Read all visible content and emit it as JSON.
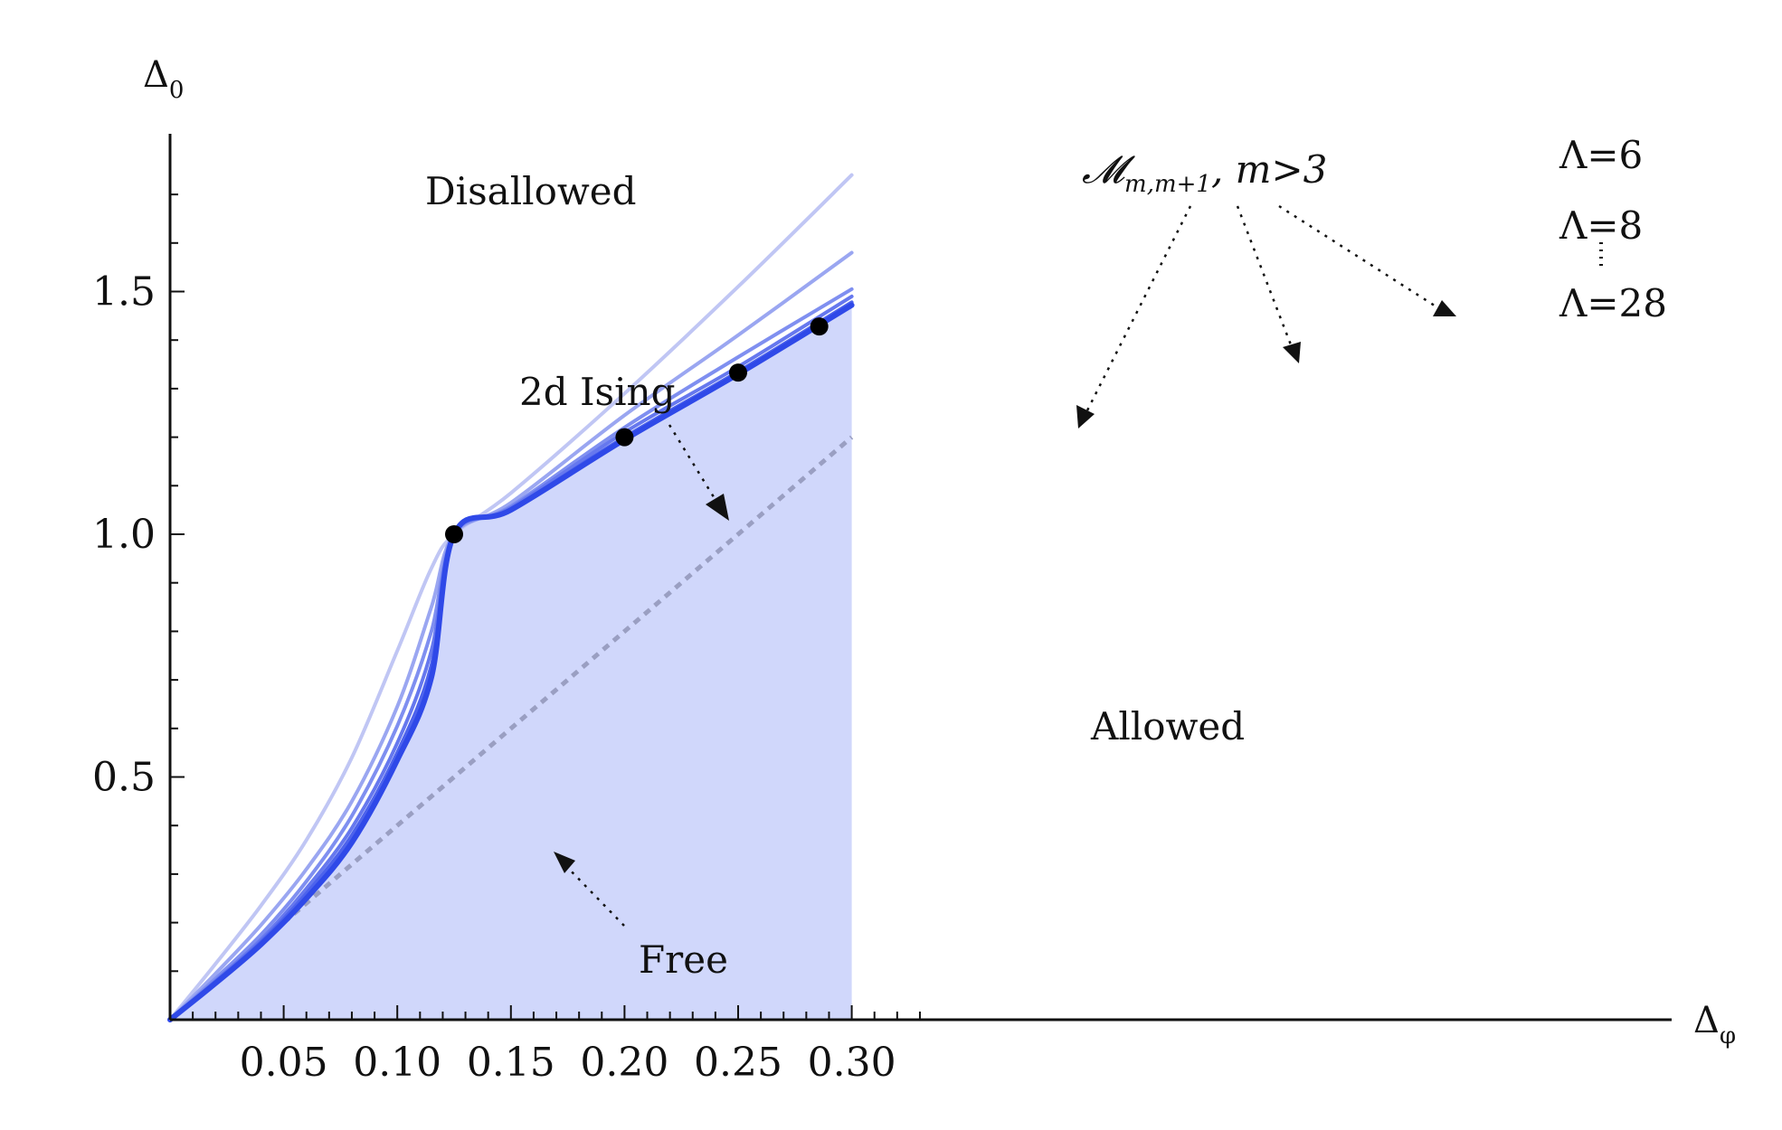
{
  "chart_data": {
    "type": "line",
    "xlabel": "Δ",
    "xlabel_sub": "φ",
    "ylabel": "Δ",
    "ylabel_sub": "0",
    "xlim": [
      0,
      0.33
    ],
    "ylim": [
      0,
      1.8
    ],
    "x_ticks": [
      0.05,
      0.1,
      0.15,
      0.2,
      0.25,
      0.3
    ],
    "x_tick_labels": [
      "0.05",
      "0.10",
      "0.15",
      "0.20",
      "0.25",
      "0.30"
    ],
    "y_ticks": [
      0.5,
      1.0,
      1.5
    ],
    "y_tick_labels": [
      "0.5",
      "1.0",
      "1.5"
    ],
    "grid": false,
    "allowed_fill_color": "#d0d7fb",
    "series": [
      {
        "name": "Λ=6",
        "color": "#c0c6f4",
        "x": [
          0,
          0.02,
          0.04,
          0.06,
          0.08,
          0.1,
          0.115,
          0.125,
          0.15,
          0.2,
          0.25,
          0.3
        ],
        "y": [
          0,
          0.115,
          0.235,
          0.37,
          0.54,
          0.76,
          0.93,
          1.0,
          1.085,
          1.29,
          1.51,
          1.74
        ]
      },
      {
        "name": "Λ=8",
        "color": "#9aa6f1",
        "x": [
          0,
          0.02,
          0.04,
          0.06,
          0.08,
          0.1,
          0.115,
          0.125,
          0.15,
          0.2,
          0.25,
          0.3
        ],
        "y": [
          0,
          0.095,
          0.195,
          0.31,
          0.45,
          0.645,
          0.85,
          1.0,
          1.065,
          1.245,
          1.41,
          1.58
        ]
      },
      {
        "name": "",
        "color": "#7f8ff0",
        "x": [
          0,
          0.02,
          0.04,
          0.06,
          0.08,
          0.1,
          0.115,
          0.125,
          0.15,
          0.2,
          0.25,
          0.3
        ],
        "y": [
          0,
          0.085,
          0.175,
          0.285,
          0.42,
          0.605,
          0.8,
          1.0,
          1.058,
          1.22,
          1.365,
          1.505
        ]
      },
      {
        "name": "",
        "color": "#6678ee",
        "x": [
          0,
          0.02,
          0.04,
          0.06,
          0.08,
          0.1,
          0.115,
          0.125,
          0.15,
          0.2,
          0.25,
          0.3
        ],
        "y": [
          0,
          0.08,
          0.165,
          0.27,
          0.395,
          0.57,
          0.76,
          1.0,
          1.055,
          1.21,
          1.345,
          1.49
        ]
      },
      {
        "name": "",
        "color": "#4d63ec",
        "x": [
          0,
          0.02,
          0.04,
          0.06,
          0.08,
          0.1,
          0.115,
          0.125,
          0.15,
          0.2,
          0.25,
          0.3
        ],
        "y": [
          0,
          0.078,
          0.16,
          0.26,
          0.38,
          0.55,
          0.73,
          1.0,
          1.052,
          1.2,
          1.335,
          1.478
        ]
      },
      {
        "name": "Λ=28",
        "color": "#2f49e8",
        "x": [
          0,
          0.02,
          0.04,
          0.06,
          0.08,
          0.1,
          0.115,
          0.125,
          0.15,
          0.2,
          0.25,
          0.3
        ],
        "y": [
          0,
          0.075,
          0.155,
          0.25,
          0.365,
          0.535,
          0.705,
          1.0,
          1.05,
          1.195,
          1.33,
          1.472
        ]
      }
    ],
    "free_line": {
      "x": [
        0,
        0.3
      ],
      "y": [
        0,
        1.2
      ],
      "color": "#9a9fc2"
    },
    "points": [
      {
        "x": 0.125,
        "y": 1.0
      },
      {
        "x": 0.2,
        "y": 1.2
      },
      {
        "x": 0.25,
        "y": 1.333
      },
      {
        "x": 0.2857,
        "y": 1.428
      }
    ],
    "annotations": {
      "disallowed": "Disallowed",
      "allowed": "Allowed",
      "ising": "2d Ising",
      "free": "Free",
      "minimal_models_main": "𝓜",
      "minimal_models_sub": "m,m+1",
      "minimal_models_cond": ", m>3",
      "lambda_6": "Λ=6",
      "lambda_8": "Λ=8",
      "lambda_28": "Λ=28"
    }
  }
}
